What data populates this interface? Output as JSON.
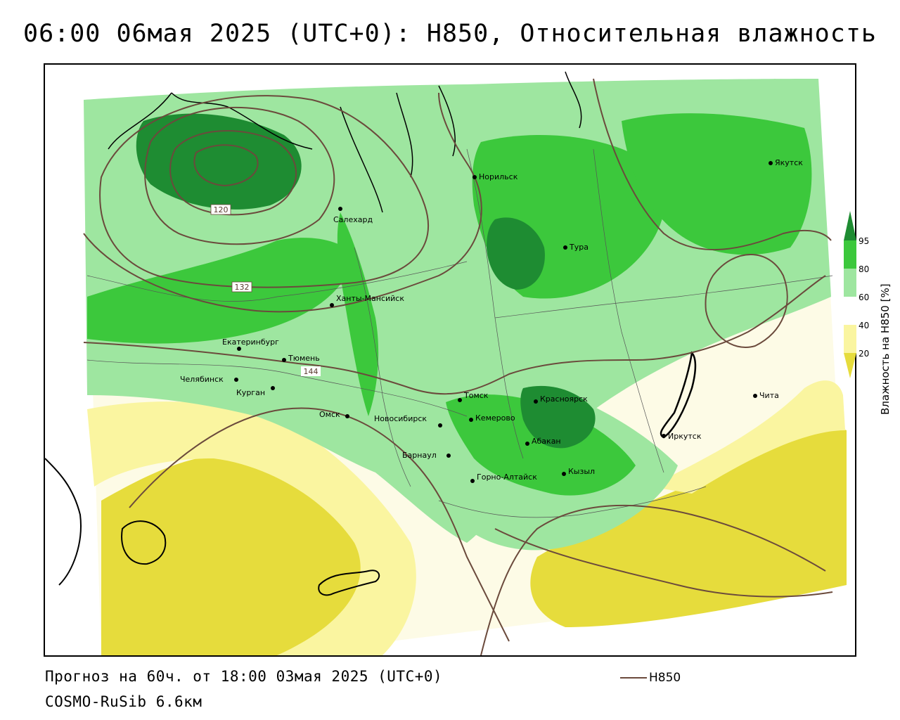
{
  "title": "06:00 06мая 2025 (UTC+0): H850, Относительная влажность",
  "forecast_line": "Прогноз на 60ч. от 18:00 03мая 2025 (UTC+0)",
  "model_line": "COSMO-RuSib 6.6км",
  "line_legend": {
    "label": "H850",
    "color": "#6b4a3c"
  },
  "colorbar": {
    "title": "Влажность на H850 [%]",
    "ticks": [
      "95",
      "80",
      "60",
      "40",
      "20"
    ],
    "colors": {
      "c95": "#1e8c32",
      "c80": "#3cc83c",
      "c60": "#9ee6a0",
      "c40": "#ffffff",
      "c30": "#faf5a0",
      "c20": "#e6dc3c"
    }
  },
  "isoline_labels": [
    "120",
    "132",
    "144"
  ],
  "cities": [
    {
      "name": "Норильск"
    },
    {
      "name": "Якутск"
    },
    {
      "name": "Салехард"
    },
    {
      "name": "Тура"
    },
    {
      "name": "Ханты-Мансийск"
    },
    {
      "name": "Екатеринбург"
    },
    {
      "name": "Тюмень"
    },
    {
      "name": "Челябинск"
    },
    {
      "name": "Курган"
    },
    {
      "name": "Омск"
    },
    {
      "name": "Новосибирск"
    },
    {
      "name": "Томск"
    },
    {
      "name": "Кемерово"
    },
    {
      "name": "Красноярск"
    },
    {
      "name": "Барнаул"
    },
    {
      "name": "Абакан"
    },
    {
      "name": "Горно-Алтайск"
    },
    {
      "name": "Кызыл"
    },
    {
      "name": "Иркутск"
    },
    {
      "name": "Чита"
    }
  ]
}
